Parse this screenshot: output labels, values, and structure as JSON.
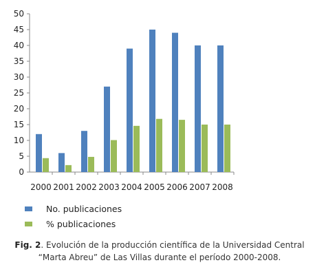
{
  "chart_data": {
    "type": "bar",
    "categories": [
      "2000",
      "2001",
      "2002",
      "2003",
      "2004",
      "2005",
      "2006",
      "2007",
      "2008"
    ],
    "series": [
      {
        "name": "No. publicaciones",
        "color": "#4F81BD",
        "values": [
          12,
          6,
          13,
          27,
          39,
          45,
          44,
          40,
          40
        ]
      },
      {
        "name": "% publicaciones",
        "color": "#9BBB59",
        "values": [
          4.4,
          2.2,
          4.8,
          10.1,
          14.6,
          16.8,
          16.5,
          15.0,
          15.0
        ]
      }
    ],
    "ylim": [
      0,
      50
    ],
    "yticks": [
      "0",
      "5",
      "10",
      "15",
      "20",
      "25",
      "30",
      "35",
      "40",
      "45",
      "50"
    ],
    "grid": false,
    "legend_position": "bottom-left"
  },
  "caption": {
    "label": "Fig. 2",
    "text": ". Evolución de la producción científica de la Universidad Central “Marta Abreu” de Las Villas durante el período 2000-2008."
  }
}
